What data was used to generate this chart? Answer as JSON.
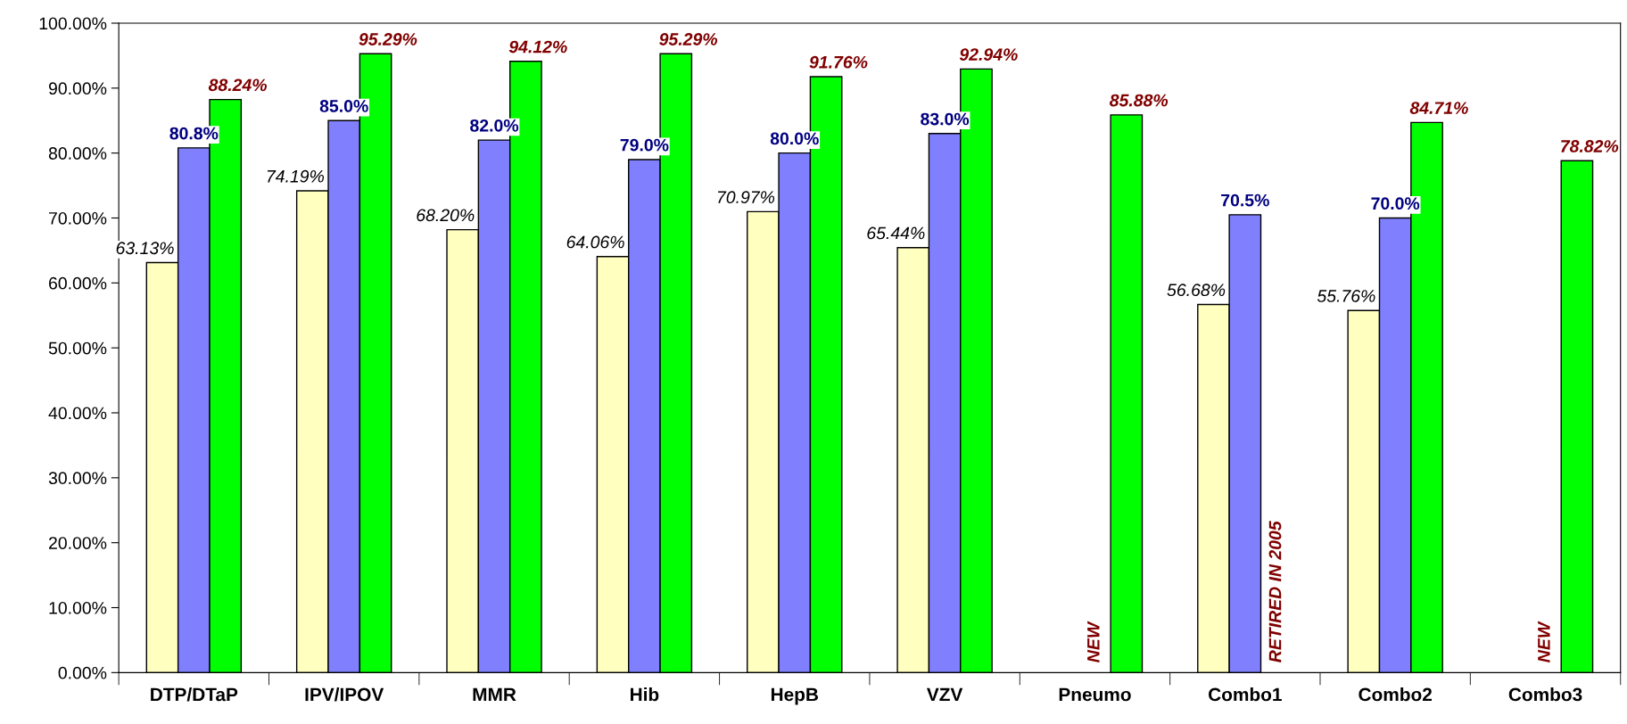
{
  "chart_data": {
    "type": "bar",
    "categories": [
      "DTP/DTaP",
      "IPV/IPOV",
      "MMR",
      "Hib",
      "HepB",
      "VZV",
      "Pneumo",
      "Combo1",
      "Combo2",
      "Combo3"
    ],
    "series": [
      {
        "color": "#ffffc0",
        "values": [
          63.13,
          74.19,
          68.2,
          64.06,
          70.97,
          65.44,
          null,
          56.68,
          55.76,
          null
        ],
        "value_labels": [
          "63.13%",
          "74.19%",
          "68.20%",
          "64.06%",
          "70.97%",
          "65.44%",
          null,
          "56.68%",
          "55.76%",
          null
        ]
      },
      {
        "color": "#8080ff",
        "values": [
          80.8,
          85.0,
          82.0,
          79.0,
          80.0,
          83.0,
          null,
          70.5,
          70.0,
          null
        ],
        "value_labels": [
          "80.8%",
          "85.0%",
          "82.0%",
          "79.0%",
          "80.0%",
          "83.0%",
          null,
          "70.5%",
          "70.0%",
          null
        ]
      },
      {
        "color": "#00ff00",
        "values": [
          88.24,
          95.29,
          94.12,
          95.29,
          91.76,
          92.94,
          85.88,
          null,
          84.71,
          78.82
        ],
        "value_labels": [
          "88.24%",
          "95.29%",
          "94.12%",
          "95.29%",
          "91.76%",
          "92.94%",
          "85.88%",
          null,
          "84.71%",
          "78.82%"
        ]
      }
    ],
    "ylim": [
      0,
      100
    ],
    "yticks": [
      {
        "value": 0,
        "label": "0.00%"
      },
      {
        "value": 10,
        "label": "10.00%"
      },
      {
        "value": 20,
        "label": "20.00%"
      },
      {
        "value": 30,
        "label": "30.00%"
      },
      {
        "value": 40,
        "label": "40.00%"
      },
      {
        "value": 50,
        "label": "50.00%"
      },
      {
        "value": 60,
        "label": "60.00%"
      },
      {
        "value": 70,
        "label": "70.00%"
      },
      {
        "value": 80,
        "label": "80.00%"
      },
      {
        "value": 90,
        "label": "90.00%"
      },
      {
        "value": 100,
        "label": "100.00%"
      }
    ],
    "annotations": [
      "NEW",
      "RETIRED IN 2005",
      "NEW"
    ],
    "grid": false
  }
}
